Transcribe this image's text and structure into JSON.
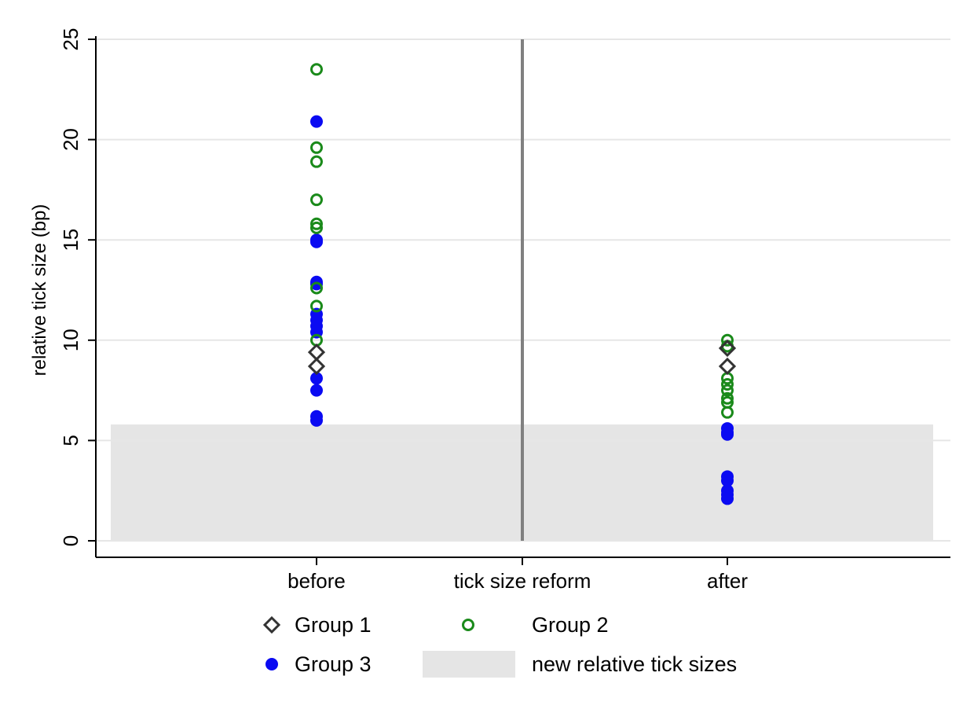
{
  "chart_data": {
    "type": "scatter",
    "ylabel": "relative tick size (bp)",
    "ylim": [
      0,
      25
    ],
    "yticks": [
      "0",
      "5",
      "10",
      "15",
      "20",
      "25"
    ],
    "categories": [
      "before",
      "tick size reform",
      "after"
    ],
    "reform_line_category": "tick size reform",
    "band": {
      "name": "new relative tick sizes",
      "ymin": 0,
      "ymax": 5.8,
      "color": "#e5e5e5"
    },
    "grid": true,
    "legend_position": "bottom",
    "series": [
      {
        "name": "Group 1",
        "marker": "diamond-hollow",
        "color": "#333333",
        "points": [
          {
            "x": "before",
            "y": 9.4
          },
          {
            "x": "before",
            "y": 8.7
          },
          {
            "x": "after",
            "y": 9.6
          },
          {
            "x": "after",
            "y": 8.7
          }
        ]
      },
      {
        "name": "Group 2",
        "marker": "circle-hollow",
        "color": "#1a8a1a",
        "points": [
          {
            "x": "before",
            "y": 23.5
          },
          {
            "x": "before",
            "y": 19.6
          },
          {
            "x": "before",
            "y": 18.9
          },
          {
            "x": "before",
            "y": 17.0
          },
          {
            "x": "before",
            "y": 15.8
          },
          {
            "x": "before",
            "y": 15.6
          },
          {
            "x": "before",
            "y": 12.6
          },
          {
            "x": "before",
            "y": 11.7
          },
          {
            "x": "before",
            "y": 10.0
          },
          {
            "x": "after",
            "y": 10.0
          },
          {
            "x": "after",
            "y": 9.7
          },
          {
            "x": "after",
            "y": 8.1
          },
          {
            "x": "after",
            "y": 7.8
          },
          {
            "x": "after",
            "y": 7.5
          },
          {
            "x": "after",
            "y": 7.1
          },
          {
            "x": "after",
            "y": 6.9
          },
          {
            "x": "after",
            "y": 6.4
          }
        ]
      },
      {
        "name": "Group 3",
        "marker": "circle-filled",
        "color": "#0a0af2",
        "points": [
          {
            "x": "before",
            "y": 20.9
          },
          {
            "x": "before",
            "y": 15.0
          },
          {
            "x": "before",
            "y": 14.9
          },
          {
            "x": "before",
            "y": 12.9
          },
          {
            "x": "before",
            "y": 12.8
          },
          {
            "x": "before",
            "y": 11.3
          },
          {
            "x": "before",
            "y": 11.0
          },
          {
            "x": "before",
            "y": 10.7
          },
          {
            "x": "before",
            "y": 10.4
          },
          {
            "x": "before",
            "y": 8.1
          },
          {
            "x": "before",
            "y": 7.5
          },
          {
            "x": "before",
            "y": 6.2
          },
          {
            "x": "before",
            "y": 6.0
          },
          {
            "x": "after",
            "y": 5.6
          },
          {
            "x": "after",
            "y": 5.4
          },
          {
            "x": "after",
            "y": 5.3
          },
          {
            "x": "after",
            "y": 3.2
          },
          {
            "x": "after",
            "y": 3.0
          },
          {
            "x": "after",
            "y": 2.5
          },
          {
            "x": "after",
            "y": 2.3
          },
          {
            "x": "after",
            "y": 2.1
          }
        ]
      }
    ]
  }
}
